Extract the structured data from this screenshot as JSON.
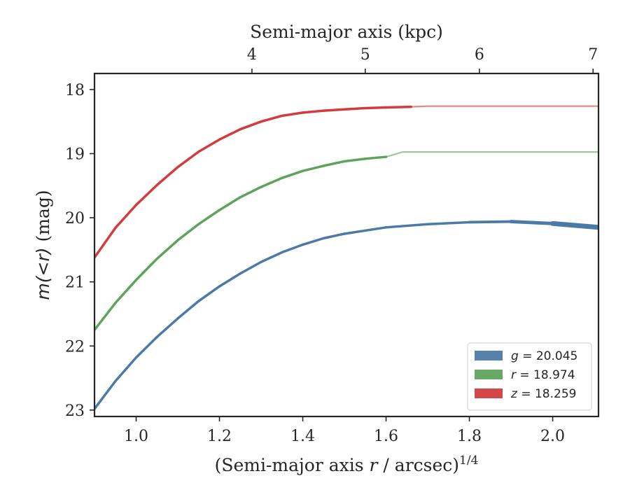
{
  "chart_data": {
    "type": "line",
    "xlabel": "(Semi-major axis r / arcsec)",
    "xlabel_sup": "1/4",
    "ylabel": "m(<r) (mag)",
    "top_xlabel": "Semi-major axis (kpc)",
    "xlim": [
      0.9,
      2.11
    ],
    "ylim": [
      23.1,
      17.75
    ],
    "y_inverted": true,
    "grid": false,
    "legend_position": "lower-right",
    "x_ticks": [
      {
        "value": 1.0,
        "label": "1.0"
      },
      {
        "value": 1.2,
        "label": "1.2"
      },
      {
        "value": 1.4,
        "label": "1.4"
      },
      {
        "value": 1.6,
        "label": "1.6"
      },
      {
        "value": 1.8,
        "label": "1.8"
      },
      {
        "value": 2.0,
        "label": "2.0"
      }
    ],
    "y_ticks": [
      {
        "value": 18,
        "label": "18"
      },
      {
        "value": 19,
        "label": "19"
      },
      {
        "value": 20,
        "label": "20"
      },
      {
        "value": 21,
        "label": "21"
      },
      {
        "value": 22,
        "label": "22"
      },
      {
        "value": 23,
        "label": "23"
      }
    ],
    "top_x_ticks": [
      {
        "value": 1.278,
        "label": "4"
      },
      {
        "value": 1.55,
        "label": "5"
      },
      {
        "value": 1.824,
        "label": "6"
      },
      {
        "value": 2.097,
        "label": "7"
      }
    ],
    "series": [
      {
        "name": "g = 20.045",
        "legend_var": "g",
        "legend_value": "= 20.045",
        "color": "#4c7aa6",
        "x": [
          0.9,
          0.95,
          1.0,
          1.05,
          1.1,
          1.15,
          1.2,
          1.25,
          1.3,
          1.35,
          1.4,
          1.45,
          1.5,
          1.6,
          1.7,
          1.8,
          1.9,
          2.0,
          2.11
        ],
        "y": [
          22.98,
          22.55,
          22.18,
          21.86,
          21.57,
          21.3,
          21.07,
          20.87,
          20.69,
          20.54,
          20.42,
          20.32,
          20.25,
          20.15,
          20.1,
          20.07,
          20.06,
          20.09,
          20.15
        ],
        "model_y": 20.045,
        "band_width": [
          1,
          1,
          1,
          1,
          1,
          1,
          1,
          1,
          1,
          1,
          1,
          1,
          1,
          1,
          1,
          1,
          1.2,
          1.6,
          2.4
        ]
      },
      {
        "name": "r = 18.974",
        "legend_var": "r",
        "legend_value": "= 18.974",
        "color": "#5ea35c",
        "x": [
          0.9,
          0.95,
          1.0,
          1.05,
          1.1,
          1.15,
          1.2,
          1.25,
          1.3,
          1.35,
          1.4,
          1.45,
          1.5,
          1.55,
          1.6
        ],
        "y": [
          21.75,
          21.33,
          20.97,
          20.64,
          20.35,
          20.1,
          19.88,
          19.68,
          19.52,
          19.38,
          19.27,
          19.19,
          19.12,
          19.08,
          19.05
        ],
        "model_y": 18.974,
        "band_width": [
          1,
          1,
          1,
          1,
          1,
          1,
          1,
          1,
          1,
          1,
          1,
          1,
          1,
          1,
          1
        ]
      },
      {
        "name": "z = 18.259",
        "legend_var": "z",
        "legend_value": "= 18.259",
        "color": "#d23c3f",
        "x": [
          0.9,
          0.95,
          1.0,
          1.05,
          1.1,
          1.15,
          1.2,
          1.25,
          1.3,
          1.35,
          1.4,
          1.45,
          1.5,
          1.55,
          1.6,
          1.66
        ],
        "y": [
          20.62,
          20.16,
          19.8,
          19.49,
          19.21,
          18.97,
          18.78,
          18.62,
          18.5,
          18.41,
          18.36,
          18.33,
          18.31,
          18.29,
          18.28,
          18.27
        ],
        "model_y": 18.259,
        "band_width": [
          1,
          1,
          1,
          1,
          1,
          1,
          1,
          1,
          1,
          1,
          1,
          1,
          1,
          1,
          1,
          1
        ]
      }
    ]
  }
}
